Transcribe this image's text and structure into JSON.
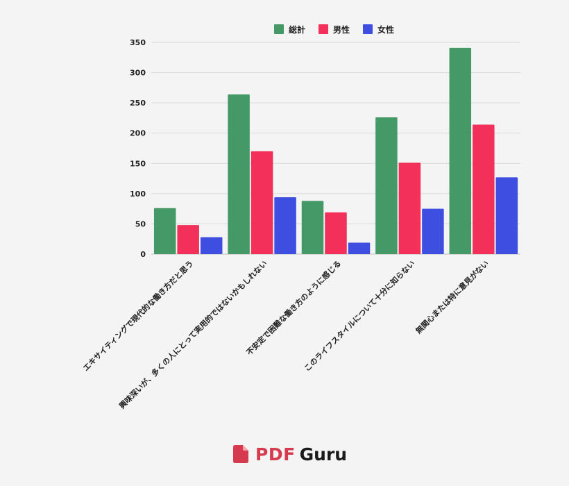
{
  "colors": {
    "total": "#449966",
    "male": "#f2305a",
    "female": "#3d4ee0",
    "brand_red": "#d63a4e"
  },
  "chart_data": {
    "type": "bar",
    "categories": [
      "エキサイティングで現代的な働き方だと思う",
      "興味深いが、多くの人にとって実用的ではないかもしれない",
      "不安定で困難な働き方のように感じる",
      "このライフスタイルについて十分に知らない",
      "無関心または特に意見がない"
    ],
    "series": [
      {
        "name": "総計",
        "values": [
          76,
          264,
          88,
          226,
          341
        ]
      },
      {
        "name": "男性",
        "values": [
          48,
          170,
          69,
          151,
          214
        ]
      },
      {
        "name": "女性",
        "values": [
          28,
          94,
          19,
          75,
          127
        ]
      }
    ],
    "yticks": [
      "0",
      "50",
      "100",
      "150",
      "200",
      "250",
      "300",
      "350"
    ],
    "ylim": [
      0,
      350
    ],
    "grid": true,
    "legend_position": "top-center",
    "title": "",
    "xlabel": "",
    "ylabel": ""
  },
  "brand": {
    "pdf": "PDF",
    "guru": "Guru",
    "icon": "document-icon"
  }
}
